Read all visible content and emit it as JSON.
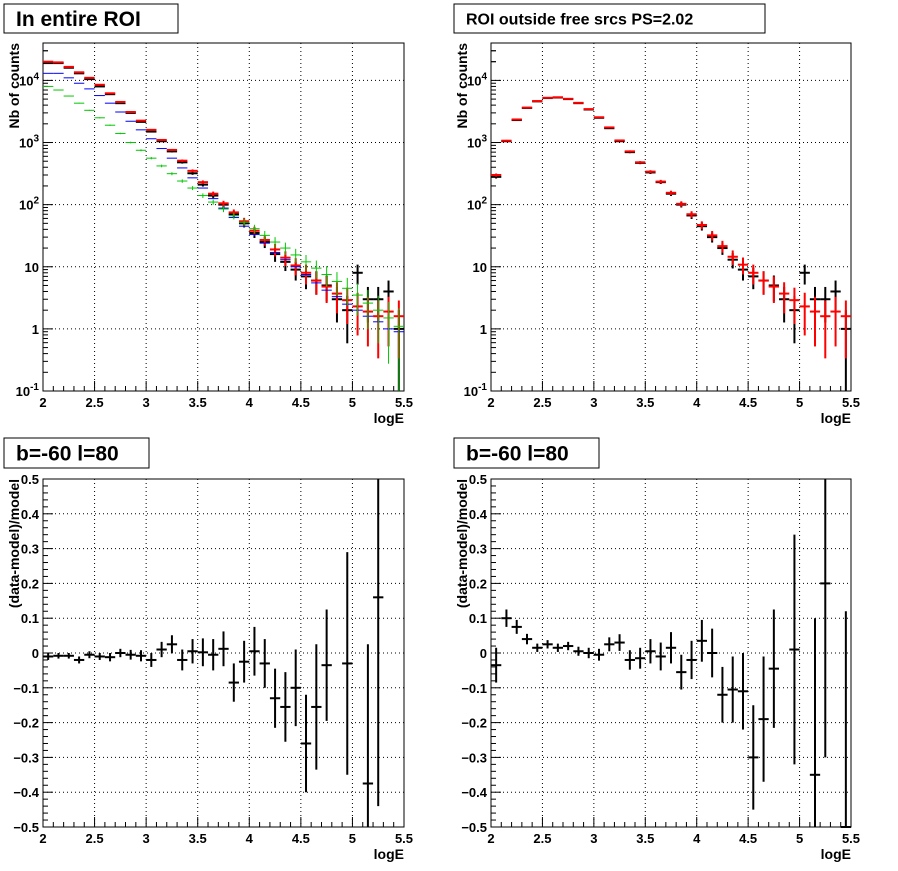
{
  "colors": {
    "data": "#000000",
    "model_total": "#ff0000",
    "model_blue": "#0000ff",
    "model_green": "#00c800",
    "grid": "#000000"
  },
  "chart_data": [
    {
      "type": "scatter",
      "title": "In entire ROI",
      "xlabel": "logE",
      "ylabel": "Nb of counts",
      "xlim": [
        2,
        5.5
      ],
      "ylim": [
        0.1,
        40000
      ],
      "log_y": true,
      "grid": true,
      "x_ticks": [
        "2",
        "2.5",
        "3",
        "3.5",
        "4",
        "4.5",
        "5",
        "5.5"
      ],
      "y_ticks": [
        "10^-1",
        "1",
        "10",
        "10^2",
        "10^3",
        "10^4"
      ],
      "x": [
        2.05,
        2.15,
        2.25,
        2.35,
        2.45,
        2.55,
        2.65,
        2.75,
        2.85,
        2.95,
        3.05,
        3.15,
        3.25,
        3.35,
        3.45,
        3.55,
        3.65,
        3.75,
        3.85,
        3.95,
        4.05,
        4.15,
        4.25,
        4.35,
        4.45,
        4.55,
        4.65,
        4.75,
        4.85,
        4.95,
        5.05,
        5.15,
        5.25,
        5.35,
        5.45
      ],
      "series": [
        {
          "name": "",
          "color": "black",
          "style": "errorbar",
          "values": [
            19000,
            19000,
            16000,
            13000,
            10500,
            8000,
            6000,
            4300,
            3000,
            2150,
            1500,
            1050,
            720,
            480,
            320,
            210,
            140,
            100,
            70,
            50,
            35,
            25,
            16,
            12,
            9,
            7,
            6,
            5,
            3,
            2,
            8,
            3,
            3,
            4,
            1
          ]
        },
        {
          "name": "",
          "color": "red",
          "style": "errorbar",
          "values": [
            20000,
            19500,
            16500,
            13500,
            11000,
            8500,
            6200,
            4500,
            3100,
            2250,
            1600,
            1100,
            760,
            510,
            350,
            230,
            150,
            105,
            75,
            54,
            38,
            27,
            19,
            14,
            10.5,
            8,
            6,
            4.8,
            3.7,
            2.9,
            2.3,
            1.9,
            1.6,
            1.9,
            1.6
          ]
        },
        {
          "name": "",
          "color": "blue",
          "style": "hline",
          "values": [
            13000,
            13000,
            11000,
            9000,
            7300,
            5700,
            4300,
            3100,
            2200,
            1600,
            1150,
            800,
            560,
            390,
            270,
            185,
            125,
            88,
            62,
            45,
            33,
            24,
            17,
            13,
            10,
            7.5,
            5.5,
            4.2,
            3.3,
            2.5,
            2,
            1.6,
            1.3,
            1,
            0.9
          ]
        },
        {
          "name": "",
          "color": "green",
          "style": "errorbar",
          "values": [
            8000,
            7000,
            5600,
            4300,
            3300,
            2500,
            1900,
            1400,
            1000,
            750,
            560,
            420,
            315,
            240,
            185,
            140,
            110,
            85,
            66,
            52,
            41,
            32,
            25,
            20,
            15.5,
            12,
            9.5,
            7.5,
            5.8,
            4.5,
            3.5,
            2.6,
            2,
            1.5,
            1.1
          ]
        }
      ]
    },
    {
      "type": "scatter",
      "title": "ROI outside free srcs PS=2.02",
      "xlabel": "logE",
      "ylabel": "Nb of counts",
      "xlim": [
        2,
        5.5
      ],
      "ylim": [
        0.1,
        40000
      ],
      "log_y": true,
      "grid": true,
      "x_ticks": [
        "2",
        "2.5",
        "3",
        "3.5",
        "4",
        "4.5",
        "5",
        "5.5"
      ],
      "y_ticks": [
        "10^-1",
        "1",
        "10",
        "10^2",
        "10^3",
        "10^4"
      ],
      "x": [
        2.05,
        2.15,
        2.25,
        2.35,
        2.45,
        2.55,
        2.65,
        2.75,
        2.85,
        2.95,
        3.05,
        3.15,
        3.25,
        3.35,
        3.45,
        3.55,
        3.65,
        3.75,
        3.85,
        3.95,
        4.05,
        4.15,
        4.25,
        4.35,
        4.45,
        4.55,
        4.65,
        4.75,
        4.85,
        4.95,
        5.05,
        5.15,
        5.25,
        5.35,
        5.45
      ],
      "series": [
        {
          "name": "",
          "color": "black",
          "style": "errorbar",
          "values": [
            280,
            1050,
            2300,
            3600,
            4600,
            5200,
            5300,
            5000,
            4300,
            3400,
            2500,
            1700,
            1050,
            700,
            470,
            330,
            230,
            150,
            100,
            67,
            45,
            30,
            20,
            13,
            9,
            7,
            6,
            5,
            3,
            2,
            8,
            3,
            3,
            4,
            1
          ]
        },
        {
          "name": "",
          "color": "red",
          "style": "errorbar",
          "values": [
            300,
            1070,
            2350,
            3650,
            4650,
            5250,
            5350,
            5050,
            4350,
            3450,
            2550,
            1750,
            1080,
            720,
            480,
            340,
            235,
            155,
            103,
            70,
            47,
            32,
            21.5,
            14.5,
            10.8,
            8,
            6,
            4.8,
            3.7,
            2.9,
            2.3,
            1.9,
            1.6,
            1.9,
            1.6
          ]
        }
      ]
    },
    {
      "type": "scatter",
      "title": "b=-60 l=80",
      "xlabel": "logE",
      "ylabel": "(data-model)/model",
      "xlim": [
        2,
        5.5
      ],
      "ylim": [
        -0.5,
        0.5
      ],
      "grid": true,
      "x_ticks": [
        "2",
        "2.5",
        "3",
        "3.5",
        "4",
        "4.5",
        "5",
        "5.5"
      ],
      "y_ticks": [
        "-0.5",
        "-0.4",
        "-0.3",
        "-0.2",
        "-0.1",
        "0",
        "0.1",
        "0.2",
        "0.3",
        "0.4",
        "0.5"
      ],
      "series": [
        {
          "name": "",
          "color": "black",
          "style": "errorbar",
          "x": [
            2.05,
            2.15,
            2.25,
            2.35,
            2.45,
            2.55,
            2.65,
            2.75,
            2.85,
            2.95,
            3.05,
            3.15,
            3.25,
            3.35,
            3.45,
            3.55,
            3.65,
            3.75,
            3.85,
            3.95,
            4.05,
            4.15,
            4.25,
            4.35,
            4.45,
            4.55,
            4.65,
            4.75,
            4.95,
            5.15,
            5.25
          ],
          "values": [
            -0.01,
            -0.008,
            -0.008,
            -0.02,
            -0.005,
            -0.01,
            -0.012,
            0.0,
            -0.005,
            -0.008,
            -0.02,
            0.01,
            0.025,
            -0.02,
            0.005,
            0.002,
            -0.005,
            0.012,
            -0.085,
            -0.025,
            0.005,
            -0.03,
            -0.13,
            -0.155,
            -0.1,
            -0.26,
            -0.155,
            -0.035,
            -0.03,
            -0.375,
            0.16
          ],
          "errors": [
            0.01,
            0.008,
            0.008,
            0.01,
            0.01,
            0.01,
            0.012,
            0.012,
            0.014,
            0.016,
            0.02,
            0.022,
            0.026,
            0.03,
            0.035,
            0.04,
            0.045,
            0.05,
            0.055,
            0.06,
            0.07,
            0.07,
            0.085,
            0.1,
            0.11,
            0.14,
            0.18,
            0.16,
            0.32,
            0.4,
            0.6
          ]
        }
      ]
    },
    {
      "type": "scatter",
      "title": "b=-60 l=80",
      "xlabel": "logE",
      "ylabel": "(data-model)/model",
      "xlim": [
        2,
        5.5
      ],
      "ylim": [
        -0.5,
        0.5
      ],
      "grid": true,
      "x_ticks": [
        "2",
        "2.5",
        "3",
        "3.5",
        "4",
        "4.5",
        "5",
        "5.5"
      ],
      "y_ticks": [
        "-0.5",
        "-0.4",
        "-0.3",
        "-0.2",
        "-0.1",
        "0",
        "0.1",
        "0.2",
        "0.3",
        "0.4",
        "0.5"
      ],
      "series": [
        {
          "name": "",
          "color": "black",
          "style": "errorbar",
          "x": [
            2.05,
            2.15,
            2.25,
            2.35,
            2.45,
            2.55,
            2.65,
            2.75,
            2.85,
            2.95,
            3.05,
            3.15,
            3.25,
            3.35,
            3.45,
            3.55,
            3.65,
            3.75,
            3.85,
            3.95,
            4.05,
            4.15,
            4.25,
            4.35,
            4.45,
            4.55,
            4.65,
            4.75,
            4.95,
            5.15,
            5.25,
            5.45
          ],
          "values": [
            -0.035,
            0.1,
            0.075,
            0.04,
            0.015,
            0.025,
            0.015,
            0.02,
            0.005,
            0.0,
            -0.005,
            0.025,
            0.03,
            -0.02,
            -0.015,
            0.005,
            -0.01,
            0.015,
            -0.055,
            -0.02,
            0.035,
            0.0,
            -0.12,
            -0.105,
            -0.11,
            -0.3,
            -0.19,
            -0.045,
            0.01,
            -0.35,
            0.2,
            -0.5
          ],
          "errors": [
            0.05,
            0.025,
            0.02,
            0.015,
            0.012,
            0.012,
            0.012,
            0.012,
            0.013,
            0.015,
            0.017,
            0.02,
            0.024,
            0.028,
            0.03,
            0.035,
            0.04,
            0.045,
            0.05,
            0.055,
            0.06,
            0.07,
            0.08,
            0.095,
            0.11,
            0.15,
            0.18,
            0.17,
            0.33,
            0.45,
            0.5,
            0.62
          ]
        }
      ]
    }
  ]
}
